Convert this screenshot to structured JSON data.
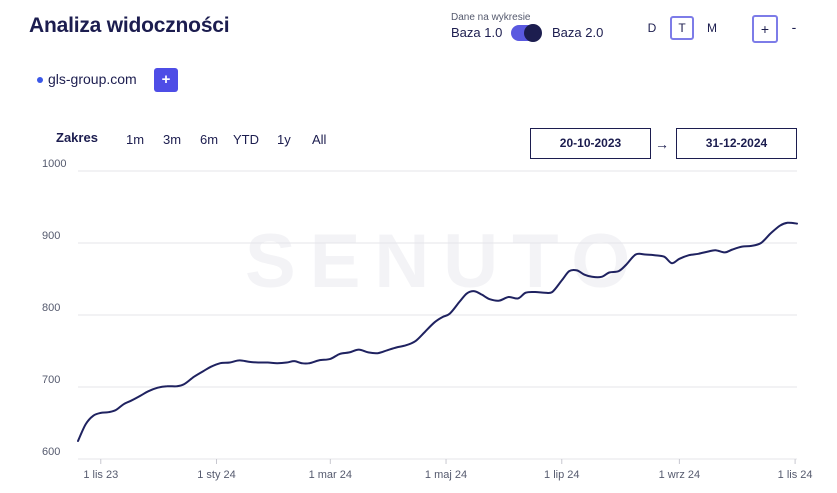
{
  "header": {
    "title": "Analiza widoczności",
    "toggle_caption": "Dane na wykresie",
    "toggle_left": "Baza 1.0",
    "toggle_right": "Baza 2.0",
    "periods": [
      "D",
      "T",
      "M"
    ],
    "active_period": "T",
    "zoom_in": "+",
    "zoom_out": "-"
  },
  "domains": [
    {
      "label": "gls-group.com",
      "color": "#3b58e8"
    }
  ],
  "add_domain_label": "+",
  "range": {
    "label": "Zakres",
    "options": [
      "1m",
      "3m",
      "6m",
      "YTD",
      "1y",
      "All"
    ],
    "start_date": "20-10-2023",
    "end_date": "31-12-2024",
    "arrow": "→"
  },
  "watermark": "SENUTO",
  "chart_data": {
    "type": "line",
    "ylim": [
      600,
      1000
    ],
    "yticks": [
      600,
      700,
      800,
      900,
      1000
    ],
    "xticks": [
      "1 lis 23",
      "1 sty 24",
      "1 mar 24",
      "1 maj 24",
      "1 lip 24",
      "1 wrz 24",
      "1 lis 24"
    ],
    "line_color": "#1f2260",
    "grid": true,
    "series": [
      {
        "values": [
          [
            "2023-10-20",
            625
          ],
          [
            "2023-10-24",
            648
          ],
          [
            "2023-10-28",
            660
          ],
          [
            "2023-11-01",
            664
          ],
          [
            "2023-11-05",
            665
          ],
          [
            "2023-11-09",
            668
          ],
          [
            "2023-11-13",
            676
          ],
          [
            "2023-11-17",
            681
          ],
          [
            "2023-11-22",
            688
          ],
          [
            "2023-11-26",
            694
          ],
          [
            "2023-12-01",
            699
          ],
          [
            "2023-12-06",
            701
          ],
          [
            "2023-12-11",
            701
          ],
          [
            "2023-12-15",
            704
          ],
          [
            "2023-12-20",
            714
          ],
          [
            "2023-12-25",
            722
          ],
          [
            "2023-12-29",
            728
          ],
          [
            "2024-01-03",
            733
          ],
          [
            "2024-01-08",
            734
          ],
          [
            "2024-01-13",
            737
          ],
          [
            "2024-01-18",
            735
          ],
          [
            "2024-01-23",
            734
          ],
          [
            "2024-01-28",
            734
          ],
          [
            "2024-02-02",
            733
          ],
          [
            "2024-02-07",
            734
          ],
          [
            "2024-02-11",
            736
          ],
          [
            "2024-02-15",
            733
          ],
          [
            "2024-02-19",
            733
          ],
          [
            "2024-02-24",
            737
          ],
          [
            "2024-03-01",
            739
          ],
          [
            "2024-03-06",
            746
          ],
          [
            "2024-03-11",
            748
          ],
          [
            "2024-03-16",
            752
          ],
          [
            "2024-03-21",
            748
          ],
          [
            "2024-03-26",
            747
          ],
          [
            "2024-03-31",
            751
          ],
          [
            "2024-04-05",
            755
          ],
          [
            "2024-04-10",
            758
          ],
          [
            "2024-04-15",
            764
          ],
          [
            "2024-04-20",
            777
          ],
          [
            "2024-04-25",
            790
          ],
          [
            "2024-04-29",
            797
          ],
          [
            "2024-05-03",
            802
          ],
          [
            "2024-05-08",
            818
          ],
          [
            "2024-05-12",
            830
          ],
          [
            "2024-05-16",
            833
          ],
          [
            "2024-05-20",
            828
          ],
          [
            "2024-05-24",
            822
          ],
          [
            "2024-05-29",
            820
          ],
          [
            "2024-06-03",
            825
          ],
          [
            "2024-06-08",
            823
          ],
          [
            "2024-06-12",
            831
          ],
          [
            "2024-06-17",
            832
          ],
          [
            "2024-06-22",
            831
          ],
          [
            "2024-06-26",
            832
          ],
          [
            "2024-07-01",
            848
          ],
          [
            "2024-07-05",
            861
          ],
          [
            "2024-07-09",
            862
          ],
          [
            "2024-07-13",
            856
          ],
          [
            "2024-07-17",
            853
          ],
          [
            "2024-07-22",
            853
          ],
          [
            "2024-07-26",
            859
          ],
          [
            "2024-07-31",
            861
          ],
          [
            "2024-08-04",
            870
          ],
          [
            "2024-08-09",
            884
          ],
          [
            "2024-08-14",
            884
          ],
          [
            "2024-08-19",
            883
          ],
          [
            "2024-08-24",
            881
          ],
          [
            "2024-08-28",
            872
          ],
          [
            "2024-09-01",
            878
          ],
          [
            "2024-09-06",
            883
          ],
          [
            "2024-09-11",
            885
          ],
          [
            "2024-09-16",
            888
          ],
          [
            "2024-09-20",
            890
          ],
          [
            "2024-09-25",
            887
          ],
          [
            "2024-09-29",
            891
          ],
          [
            "2024-10-04",
            895
          ],
          [
            "2024-10-09",
            896
          ],
          [
            "2024-10-14",
            900
          ],
          [
            "2024-10-19",
            913
          ],
          [
            "2024-10-24",
            924
          ],
          [
            "2024-10-28",
            928
          ],
          [
            "2024-11-02",
            927
          ]
        ]
      }
    ]
  }
}
